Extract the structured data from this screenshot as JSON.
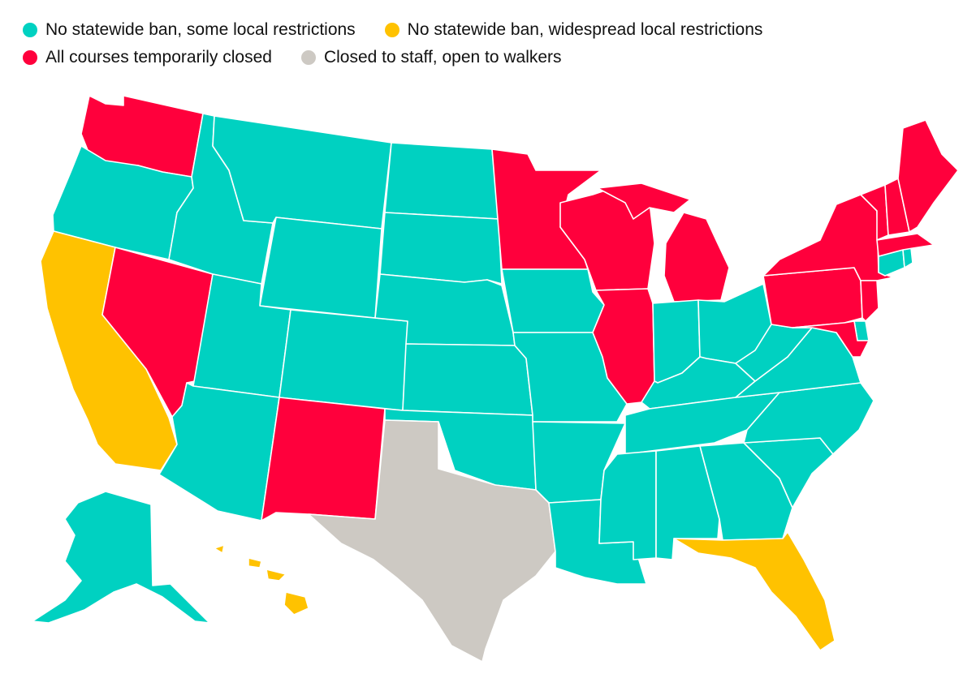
{
  "legend": {
    "row1": [
      {
        "label": "No statewide ban, some local restrictions",
        "color": "#00d1c1"
      },
      {
        "label": "No statewide ban, widespread local restrictions",
        "color": "#ffc200"
      }
    ],
    "row2": [
      {
        "label": "All courses temporarily closed",
        "color": "#ff003c"
      },
      {
        "label": "Closed to staff, open to walkers",
        "color": "#cdc9c3"
      }
    ]
  },
  "colors": {
    "some_local": "#00d1c1",
    "widespread_local": "#ffc200",
    "closed": "#ff003c",
    "staff_only": "#cdc9c3"
  },
  "states": {
    "WA": "closed",
    "OR": "some_local",
    "CA": "widespread_local",
    "NV": "closed",
    "ID": "some_local",
    "MT": "some_local",
    "WY": "some_local",
    "UT": "some_local",
    "AZ": "some_local",
    "CO": "some_local",
    "NM": "closed",
    "ND": "some_local",
    "SD": "some_local",
    "NE": "some_local",
    "KS": "some_local",
    "OK": "some_local",
    "TX": "staff_only",
    "MN": "closed",
    "IA": "some_local",
    "MO": "some_local",
    "AR": "some_local",
    "LA": "some_local",
    "WI": "closed",
    "IL": "closed",
    "MI": "closed",
    "IN": "some_local",
    "OH": "some_local",
    "KY": "some_local",
    "TN": "some_local",
    "MS": "some_local",
    "AL": "some_local",
    "GA": "some_local",
    "FL": "widespread_local",
    "SC": "some_local",
    "NC": "some_local",
    "VA": "some_local",
    "WV": "some_local",
    "PA": "closed",
    "NY": "closed",
    "VT": "closed",
    "NH": "closed",
    "ME": "closed",
    "MA": "closed",
    "RI": "some_local",
    "CT": "some_local",
    "NJ": "closed",
    "DE": "some_local",
    "MD": "closed",
    "AK": "some_local",
    "HI": "widespread_local"
  }
}
